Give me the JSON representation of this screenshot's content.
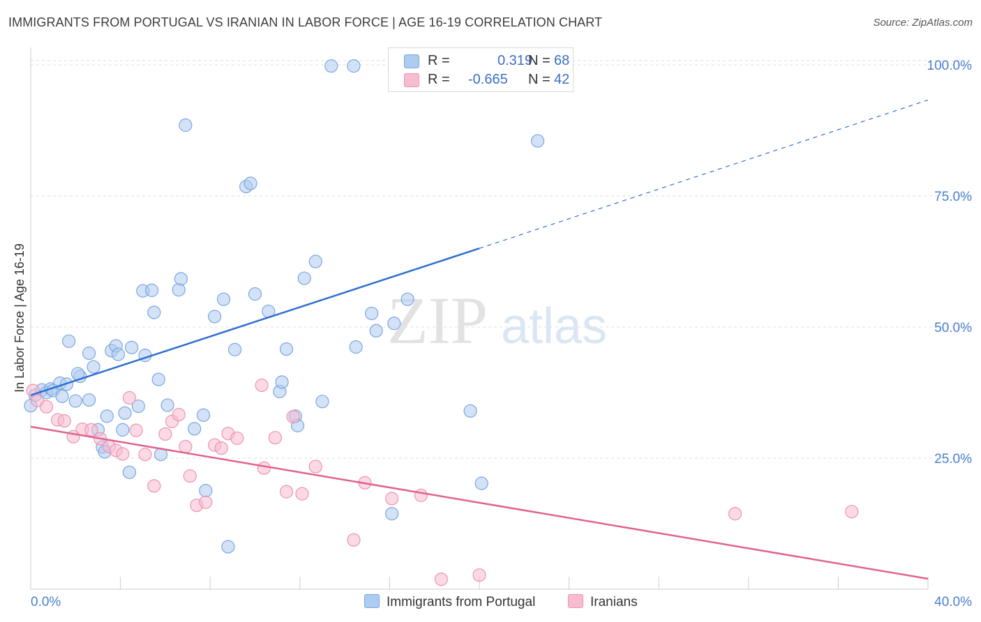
{
  "header": {
    "title": "IMMIGRANTS FROM PORTUGAL VS IRANIAN IN LABOR FORCE | AGE 16-19 CORRELATION CHART",
    "source": "Source: ZipAtlas.com"
  },
  "watermark": {
    "zip": "ZIP",
    "atlas": "atlas"
  },
  "legend": {
    "rows": [
      {
        "r_label": "R =",
        "r_value": "0.319",
        "n_label": "N =",
        "n_value": "68",
        "color": "#aecbf0"
      },
      {
        "r_label": "R =",
        "r_value": "-0.665",
        "n_label": "N =",
        "n_value": "42",
        "color": "#f7bcd0"
      }
    ]
  },
  "bottom_legend": {
    "portugal": "Immigrants from Portugal",
    "iranians": "Iranians"
  },
  "colors": {
    "blue_fill": "#aecbf0",
    "blue_stroke": "#7aa7e0",
    "blue_line": "#2d6fd0",
    "pink_fill": "#f7bcd0",
    "pink_stroke": "#ec93b2",
    "pink_line": "#e0628f",
    "tick_label": "#4a7fcf",
    "grid": "#dddddd"
  },
  "chart_data": {
    "type": "scatter",
    "title": "IMMIGRANTS FROM PORTUGAL VS IRANIAN IN LABOR FORCE | AGE 16-19 CORRELATION CHART",
    "xlabel": "",
    "ylabel": "In Labor Force | Age 16-19",
    "xlim": [
      0,
      40
    ],
    "ylim": [
      0,
      102
    ],
    "x_tick_labels": [
      "0.0%",
      "40.0%"
    ],
    "y_ticks": [
      25,
      50,
      75,
      100
    ],
    "y_tick_labels": [
      "25.0%",
      "50.0%",
      "75.0%",
      "100.0%"
    ],
    "grid": true,
    "series": [
      {
        "name": "Immigrants from Portugal",
        "points": [
          [
            0.2,
            37.0
          ],
          [
            0.5,
            38.0
          ],
          [
            0.7,
            37.5
          ],
          [
            0.9,
            38.2
          ],
          [
            1.0,
            37.9
          ],
          [
            1.3,
            39.3
          ],
          [
            1.4,
            36.8
          ],
          [
            1.6,
            39.1
          ],
          [
            2.0,
            35.9
          ],
          [
            2.2,
            40.6
          ],
          [
            1.7,
            47.3
          ],
          [
            2.1,
            41.1
          ],
          [
            2.6,
            36.1
          ],
          [
            2.8,
            42.4
          ],
          [
            3.0,
            30.4
          ],
          [
            3.2,
            27.1
          ],
          [
            3.3,
            26.2
          ],
          [
            3.4,
            33.0
          ],
          [
            2.6,
            45.0
          ],
          [
            3.6,
            45.5
          ],
          [
            3.8,
            46.4
          ],
          [
            3.9,
            44.8
          ],
          [
            4.1,
            30.4
          ],
          [
            4.2,
            33.6
          ],
          [
            4.4,
            22.3
          ],
          [
            4.5,
            46.1
          ],
          [
            4.8,
            34.9
          ],
          [
            5.1,
            44.6
          ],
          [
            5.0,
            56.9
          ],
          [
            5.4,
            57.0
          ],
          [
            5.5,
            52.8
          ],
          [
            5.7,
            40.0
          ],
          [
            5.8,
            25.7
          ],
          [
            6.1,
            35.1
          ],
          [
            6.6,
            57.1
          ],
          [
            6.7,
            59.2
          ],
          [
            6.9,
            88.5
          ],
          [
            7.3,
            30.6
          ],
          [
            7.7,
            33.2
          ],
          [
            7.8,
            18.8
          ],
          [
            8.2,
            52.0
          ],
          [
            8.6,
            55.3
          ],
          [
            8.8,
            8.1
          ],
          [
            9.1,
            45.7
          ],
          [
            9.6,
            76.8
          ],
          [
            9.8,
            77.4
          ],
          [
            10.0,
            56.3
          ],
          [
            10.6,
            53.0
          ],
          [
            11.1,
            37.7
          ],
          [
            11.2,
            39.5
          ],
          [
            11.4,
            45.8
          ],
          [
            11.8,
            33.0
          ],
          [
            11.9,
            31.2
          ],
          [
            12.2,
            59.3
          ],
          [
            12.7,
            62.5
          ],
          [
            13.0,
            35.8
          ],
          [
            13.4,
            99.8
          ],
          [
            14.4,
            99.8
          ],
          [
            14.5,
            46.2
          ],
          [
            15.2,
            52.6
          ],
          [
            15.4,
            49.3
          ],
          [
            16.1,
            14.4
          ],
          [
            16.2,
            50.7
          ],
          [
            16.8,
            55.3
          ],
          [
            19.6,
            34.0
          ],
          [
            20.1,
            20.2
          ],
          [
            22.6,
            85.5
          ],
          [
            0.0,
            35.0
          ]
        ]
      },
      {
        "name": "Iranians",
        "points": [
          [
            0.1,
            37.9
          ],
          [
            0.3,
            36.0
          ],
          [
            0.7,
            34.8
          ],
          [
            1.2,
            32.3
          ],
          [
            1.5,
            32.1
          ],
          [
            1.9,
            29.1
          ],
          [
            2.3,
            30.5
          ],
          [
            2.7,
            30.4
          ],
          [
            3.1,
            28.7
          ],
          [
            3.5,
            27.2
          ],
          [
            3.8,
            26.5
          ],
          [
            4.1,
            25.8
          ],
          [
            4.4,
            36.5
          ],
          [
            4.7,
            30.3
          ],
          [
            5.1,
            25.7
          ],
          [
            5.5,
            19.7
          ],
          [
            6.0,
            29.6
          ],
          [
            6.3,
            32.0
          ],
          [
            6.6,
            33.3
          ],
          [
            6.9,
            27.2
          ],
          [
            7.1,
            21.6
          ],
          [
            7.4,
            16.0
          ],
          [
            7.8,
            16.6
          ],
          [
            8.2,
            27.5
          ],
          [
            8.5,
            26.9
          ],
          [
            8.8,
            29.7
          ],
          [
            9.2,
            28.8
          ],
          [
            10.3,
            38.9
          ],
          [
            10.4,
            23.1
          ],
          [
            10.9,
            28.9
          ],
          [
            11.4,
            18.6
          ],
          [
            11.7,
            32.9
          ],
          [
            12.1,
            18.2
          ],
          [
            12.7,
            23.4
          ],
          [
            14.4,
            9.4
          ],
          [
            14.9,
            20.3
          ],
          [
            16.1,
            17.3
          ],
          [
            17.4,
            17.9
          ],
          [
            20.0,
            2.7
          ],
          [
            18.3,
            1.9
          ],
          [
            31.4,
            14.4
          ],
          [
            36.6,
            14.8
          ]
        ]
      }
    ],
    "trend_lines": [
      {
        "series": "Immigrants from Portugal",
        "solid_from": [
          0.0,
          37.0
        ],
        "solid_to": [
          20.0,
          65.0
        ],
        "dashed_to": [
          40.0,
          93.3
        ]
      },
      {
        "series": "Iranians",
        "from": [
          0.0,
          31.0
        ],
        "to": [
          40.0,
          2.0
        ]
      }
    ]
  }
}
